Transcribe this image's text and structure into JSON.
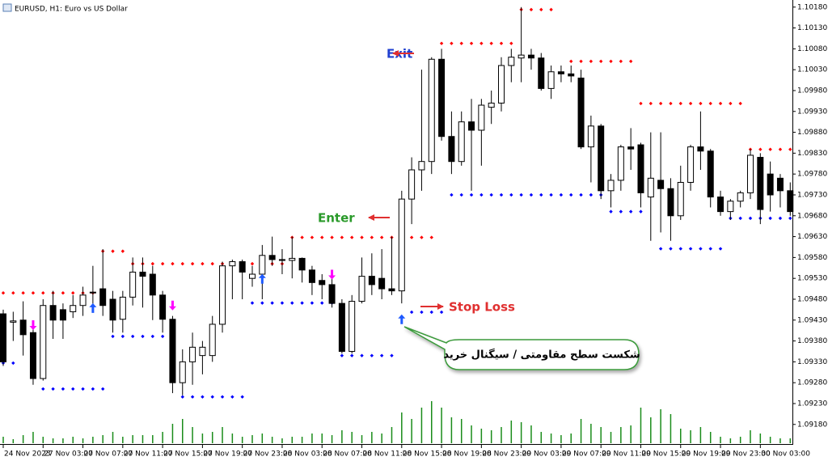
{
  "chart_data": {
    "type": "candlestick",
    "title": "EURUSD, H1:  Euro vs US Dollar",
    "categories": [
      "24 Nov 2023",
      null,
      null,
      null,
      "27 Nov 03:00",
      null,
      null,
      null,
      "27 Nov 07:00",
      null,
      null,
      null,
      "27 Nov 11:00",
      null,
      null,
      null,
      "27 Nov 15:00",
      null,
      null,
      null,
      "27 Nov 19:00",
      null,
      null,
      null,
      "27 Nov 23:00",
      null,
      null,
      null,
      "28 Nov 03:00",
      null,
      null,
      null,
      "28 Nov 07:00",
      null,
      null,
      null,
      "28 Nov 11:00",
      null,
      null,
      null,
      "28 Nov 15:00",
      null,
      null,
      null,
      "28 Nov 19:00",
      null,
      null,
      null,
      "28 Nov 23:00",
      null,
      null,
      null,
      "29 Nov 03:00",
      null,
      null,
      null,
      "29 Nov 07:00",
      null,
      null,
      null,
      "29 Nov 11:00",
      null,
      null,
      null,
      "29 Nov 15:00",
      null,
      null,
      null,
      "29 Nov 19:00",
      null,
      null,
      null,
      "29 Nov 23:00",
      null,
      null,
      null,
      "30 Nov 03:00",
      null,
      null,
      null
    ],
    "open": [
      1.09445,
      1.09425,
      1.0943,
      1.094,
      1.0929,
      1.09465,
      1.09455,
      1.0945,
      1.09465,
      1.09495,
      1.09505,
      1.0948,
      1.09432,
      1.09485,
      1.09545,
      1.0954,
      1.0949,
      1.09432,
      1.0928,
      1.0933,
      1.09345,
      1.09345,
      1.0942,
      1.0956,
      1.0957,
      1.0953,
      1.0954,
      1.09585,
      1.09575,
      1.09573,
      1.09578,
      1.0955,
      1.09525,
      1.09515,
      1.0947,
      1.09355,
      1.09475,
      1.09535,
      1.0953,
      1.09505,
      1.095,
      1.0972,
      1.0979,
      1.0981,
      1.10055,
      1.0987,
      1.0981,
      1.09905,
      1.09885,
      1.0994,
      1.0995,
      1.1004,
      1.10058,
      1.10065,
      1.10058,
      1.09985,
      1.10025,
      1.1002,
      1.1001,
      1.09845,
      1.09895,
      1.0974,
      1.09765,
      1.09845,
      1.0985,
      1.09725,
      1.09765,
      1.09745,
      1.0968,
      1.0976,
      1.09845,
      1.09835,
      1.09725,
      1.0969,
      1.09715,
      1.09735,
      1.0982,
      1.0978,
      1.0977,
      1.0974
    ],
    "high": [
      1.09455,
      1.0945,
      1.09475,
      1.09425,
      1.0948,
      1.095,
      1.0947,
      1.0949,
      1.0951,
      1.0956,
      1.096,
      1.095,
      1.095,
      1.0958,
      1.0958,
      1.0956,
      1.095,
      1.0944,
      1.0936,
      1.094,
      1.0938,
      1.0944,
      1.0957,
      1.09575,
      1.09575,
      1.0956,
      1.0961,
      1.0963,
      1.096,
      1.0963,
      1.0958,
      1.0956,
      1.0954,
      1.0954,
      1.0948,
      1.0949,
      1.0958,
      1.0959,
      1.096,
      1.0963,
      1.0974,
      1.0982,
      1.1003,
      1.1006,
      1.1008,
      1.0993,
      1.0993,
      1.0996,
      1.0996,
      1.0998,
      1.1006,
      1.1008,
      1.1018,
      1.1008,
      1.1007,
      1.1004,
      1.1004,
      1.1004,
      1.1003,
      1.0992,
      1.099,
      1.0978,
      1.0985,
      1.0989,
      1.09855,
      1.0988,
      1.0988,
      1.0977,
      1.098,
      1.0985,
      1.0993,
      1.0984,
      1.0974,
      1.0972,
      1.0974,
      1.0984,
      1.0983,
      1.0981,
      1.0978,
      1.0976
    ],
    "low": [
      1.0932,
      1.0938,
      1.09345,
      1.09275,
      1.09285,
      1.09385,
      1.09385,
      1.09435,
      1.0944,
      1.0946,
      1.0944,
      1.094,
      1.094,
      1.09465,
      1.0946,
      1.0943,
      1.094,
      1.09255,
      1.0925,
      1.09275,
      1.093,
      1.0933,
      1.094,
      1.0948,
      1.0948,
      1.0951,
      1.0948,
      1.0956,
      1.0954,
      1.0953,
      1.0952,
      1.0949,
      1.0948,
      1.0946,
      1.0935,
      1.0935,
      1.0947,
      1.0949,
      1.0948,
      1.0949,
      1.0947,
      1.0966,
      1.0974,
      1.0978,
      1.0986,
      1.0978,
      1.098,
      1.0974,
      1.098,
      1.099,
      1.0993,
      1.1,
      1.1,
      1.1003,
      1.0998,
      1.0996,
      1.1,
      1.1,
      1.0984,
      1.0976,
      1.0972,
      1.097,
      1.0974,
      1.0979,
      1.097,
      1.0962,
      1.0964,
      1.0962,
      1.0967,
      1.0974,
      1.0979,
      1.097,
      1.0968,
      1.0967,
      1.097,
      1.0972,
      1.0966,
      1.0969,
      1.097,
      1.0968
    ],
    "close": [
      1.0933,
      1.09428,
      1.09395,
      1.0929,
      1.09465,
      1.0943,
      1.0943,
      1.09465,
      1.0949,
      1.09497,
      1.09465,
      1.0943,
      1.09485,
      1.09545,
      1.09535,
      1.0949,
      1.09432,
      1.0928,
      1.0933,
      1.09365,
      1.09365,
      1.0942,
      1.0956,
      1.0957,
      1.09545,
      1.0954,
      1.09585,
      1.09575,
      1.09573,
      1.09578,
      1.0955,
      1.0952,
      1.09515,
      1.0947,
      1.09355,
      1.09475,
      1.09535,
      1.09515,
      1.09505,
      1.095,
      1.0972,
      1.0979,
      1.0981,
      1.10055,
      1.0987,
      1.0981,
      1.09905,
      1.09885,
      1.09945,
      1.0995,
      1.1004,
      1.1006,
      1.10065,
      1.10058,
      1.09985,
      1.10025,
      1.1002,
      1.10015,
      1.09845,
      1.09895,
      1.0974,
      1.09765,
      1.09845,
      1.0984,
      1.09735,
      1.0977,
      1.09745,
      1.0968,
      1.0976,
      1.09845,
      1.09835,
      1.09725,
      1.0969,
      1.09715,
      1.09735,
      1.09825,
      1.09695,
      1.0973,
      1.0974,
      1.0969
    ],
    "resistance": [
      1.09495,
      1.09495,
      1.09495,
      1.09495,
      1.09495,
      1.09495,
      1.09495,
      1.09495,
      1.09495,
      1.09495,
      1.09595,
      1.09595,
      1.09595,
      1.09565,
      1.09565,
      1.09565,
      1.09565,
      1.09565,
      1.09565,
      1.09565,
      1.09565,
      1.09565,
      1.09565,
      1.09565,
      1.09565,
      1.09565,
      1.09565,
      1.09565,
      1.09565,
      1.09628,
      1.09628,
      1.09628,
      1.09628,
      1.09628,
      1.09628,
      1.09628,
      1.09628,
      1.09628,
      1.09628,
      1.09628,
      1.09628,
      1.09628,
      1.09628,
      1.09628,
      1.10093,
      1.10093,
      1.10093,
      1.10093,
      1.10093,
      1.10093,
      1.10093,
      1.10093,
      1.10174,
      1.10174,
      1.10174,
      1.10174,
      null,
      1.1005,
      1.1005,
      1.1005,
      1.1005,
      1.1005,
      1.1005,
      1.1005,
      1.09949,
      1.09949,
      1.09949,
      1.09949,
      1.09949,
      1.09949,
      1.09949,
      1.09949,
      1.09949,
      1.09949,
      1.09949,
      1.09839,
      1.09839,
      1.09839,
      1.09839,
      1.09839
    ],
    "support": [
      1.09327,
      1.09327,
      null,
      null,
      1.09265,
      1.09265,
      1.09265,
      1.09265,
      1.09265,
      1.09265,
      1.09265,
      1.09391,
      1.09391,
      1.09391,
      1.09391,
      1.09391,
      1.09391,
      null,
      1.09246,
      1.09246,
      1.09246,
      1.09246,
      1.09246,
      1.09246,
      1.09246,
      1.09471,
      1.09471,
      1.09471,
      1.09471,
      1.09471,
      1.09471,
      1.09471,
      1.09471,
      1.09471,
      1.09345,
      1.09345,
      1.09345,
      1.09345,
      1.09345,
      1.09345,
      null,
      1.09449,
      1.09449,
      1.09449,
      1.09449,
      1.0973,
      1.0973,
      1.0973,
      1.0973,
      1.0973,
      1.0973,
      1.0973,
      1.0973,
      1.0973,
      1.0973,
      1.0973,
      1.0973,
      1.0973,
      1.0973,
      1.0973,
      1.0973,
      1.0969,
      1.0969,
      1.0969,
      1.0969,
      null,
      1.09601,
      1.09601,
      1.09601,
      1.09601,
      1.09601,
      1.09601,
      1.09601,
      1.09674,
      1.09674,
      1.09674,
      1.09674,
      1.09674,
      1.09674,
      1.09674
    ],
    "buy_arrows": [
      null,
      null,
      null,
      null,
      null,
      null,
      null,
      null,
      null,
      1.09459,
      null,
      null,
      null,
      null,
      null,
      null,
      null,
      null,
      null,
      null,
      null,
      null,
      null,
      null,
      null,
      null,
      1.09529,
      null,
      null,
      null,
      null,
      null,
      null,
      null,
      null,
      null,
      null,
      null,
      null,
      null,
      1.09432,
      null,
      null,
      null,
      null,
      null,
      null,
      null,
      null,
      null,
      null,
      null,
      null,
      null,
      null,
      null,
      null,
      null,
      null,
      null,
      null,
      null,
      null,
      null,
      null,
      null,
      null,
      null,
      null,
      null,
      null,
      null,
      null,
      null,
      null,
      null,
      null,
      null,
      null,
      null
    ],
    "sell_arrows": [
      null,
      null,
      null,
      1.09418,
      null,
      null,
      null,
      null,
      null,
      null,
      null,
      null,
      null,
      null,
      null,
      null,
      null,
      1.09465,
      null,
      null,
      null,
      null,
      null,
      null,
      null,
      null,
      null,
      null,
      null,
      null,
      null,
      null,
      null,
      1.09539,
      null,
      null,
      null,
      null,
      null,
      null,
      null,
      null,
      null,
      null,
      null,
      null,
      null,
      null,
      null,
      null,
      null,
      null,
      null,
      null,
      null,
      null,
      null,
      null,
      null,
      null,
      null,
      null,
      null,
      null,
      null,
      null,
      null,
      null,
      null,
      null,
      null,
      null,
      null,
      null,
      null,
      null,
      null,
      null,
      null,
      null
    ],
    "volume": [
      8,
      5,
      10,
      14,
      8,
      6,
      6,
      8,
      6,
      8,
      10,
      14,
      8,
      10,
      10,
      10,
      14,
      24,
      30,
      20,
      12,
      14,
      20,
      12,
      8,
      10,
      12,
      8,
      6,
      8,
      8,
      12,
      12,
      10,
      16,
      14,
      10,
      14,
      12,
      20,
      38,
      30,
      44,
      52,
      44,
      32,
      30,
      22,
      18,
      16,
      20,
      28,
      26,
      22,
      14,
      12,
      10,
      12,
      30,
      24,
      20,
      14,
      20,
      22,
      44,
      32,
      42,
      36,
      18,
      16,
      20,
      14,
      8,
      6,
      8,
      16,
      12,
      8,
      6,
      6
    ],
    "up_color": "#ffffff",
    "down_color": "#000000",
    "resistance_color": "#ff0000",
    "support_color": "#0000ff",
    "buy_color": "#1e5aff",
    "sell_color": "#ff00ff",
    "volume_color": "#1a8c1a",
    "ylim": [
      1.09135,
      1.10197
    ],
    "yticks": [
      {
        "value": 1.1018,
        "label": "1.10180"
      },
      {
        "value": 1.1013,
        "label": "1.10130"
      },
      {
        "value": 1.1008,
        "label": "1.10080"
      },
      {
        "value": 1.1003,
        "label": "1.10030"
      },
      {
        "value": 1.0998,
        "label": "1.09980"
      },
      {
        "value": 1.0993,
        "label": "1.09930"
      },
      {
        "value": 1.0988,
        "label": "1.09880"
      },
      {
        "value": 1.0983,
        "label": "1.09830"
      },
      {
        "value": 1.0978,
        "label": "1.09780"
      },
      {
        "value": 1.0973,
        "label": "1.09730"
      },
      {
        "value": 1.0968,
        "label": "1.09680"
      },
      {
        "value": 1.0963,
        "label": "1.09630"
      },
      {
        "value": 1.0958,
        "label": "1.09580"
      },
      {
        "value": 1.0953,
        "label": "1.09530"
      },
      {
        "value": 1.0948,
        "label": "1.09480"
      },
      {
        "value": 1.0943,
        "label": "1.09430"
      },
      {
        "value": 1.0938,
        "label": "1.09380"
      },
      {
        "value": 1.0933,
        "label": "1.09330"
      },
      {
        "value": 1.0928,
        "label": "1.09280"
      },
      {
        "value": 1.0923,
        "label": "1.09230"
      },
      {
        "value": 1.0918,
        "label": "1.09180"
      }
    ],
    "grid": false,
    "annotations": {
      "exit": "Exit",
      "enter": "Enter",
      "stop_loss": "Stop Loss",
      "callout": "شکست سطح مقاومتی / سیگنال خرید"
    }
  }
}
